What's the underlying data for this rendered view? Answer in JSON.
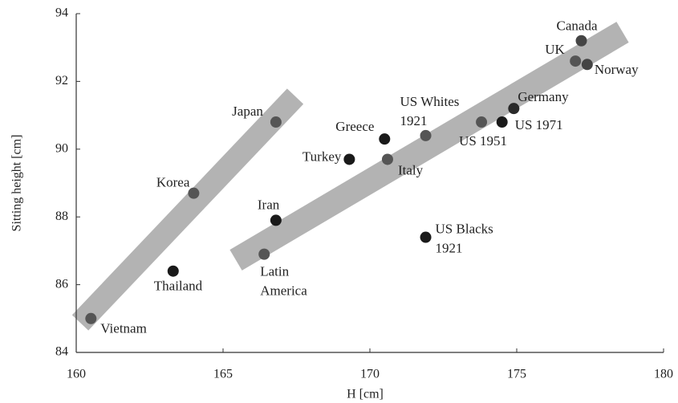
{
  "chart_data": {
    "type": "scatter",
    "x_label": "H [cm]",
    "y_label": "Sitting height [cm]",
    "xlim": [
      160,
      180
    ],
    "xticks": [
      160,
      165,
      170,
      175,
      180
    ],
    "ylim": [
      84,
      94
    ],
    "yticks": [
      84,
      86,
      88,
      90,
      92,
      94
    ],
    "labels": [
      "Vietnam",
      "Thailand",
      "Korea",
      "Japan",
      "Iran",
      [
        "Latin",
        "America"
      ],
      "Turkey",
      "Greece",
      "Italy",
      [
        "US Whites",
        "1921"
      ],
      [
        "US Blacks",
        "1921"
      ],
      "US 1951",
      "US 1971",
      "Germany",
      "UK",
      "Norway",
      "Canada"
    ],
    "x": [
      160.5,
      163.3,
      164.0,
      166.8,
      166.8,
      166.4,
      169.3,
      170.5,
      170.6,
      171.9,
      171.9,
      173.8,
      174.5,
      174.9,
      177.0,
      177.4,
      177.2
    ],
    "values": [
      85.0,
      86.4,
      88.7,
      90.8,
      87.9,
      86.9,
      89.7,
      90.3,
      89.7,
      90.4,
      87.4,
      90.8,
      90.8,
      91.2,
      92.6,
      92.5,
      93.2
    ],
    "colors": [
      "#555555",
      "#1a1a1a",
      "#555555",
      "#555555",
      "#1a1a1a",
      "#555555",
      "#1a1a1a",
      "#1a1a1a",
      "#555555",
      "#555555",
      "#1a1a1a",
      "#555555",
      "#1a1a1a",
      "#2a2a2a",
      "#555555",
      "#444444",
      "#444444"
    ]
  }
}
